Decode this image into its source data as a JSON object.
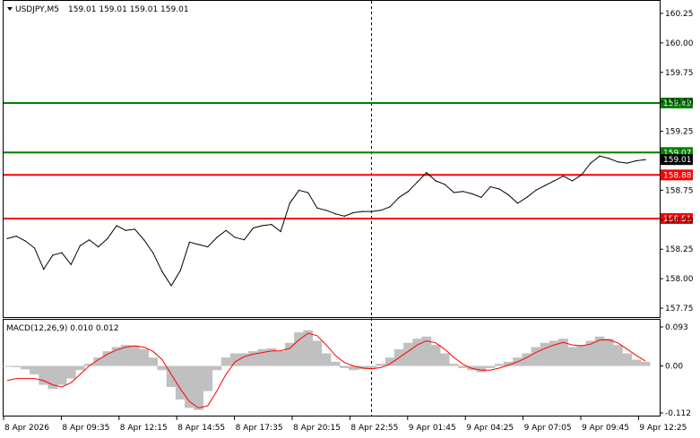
{
  "header": {
    "symbol": "USDJPY,M5",
    "ohlc": "159.01 159.01 159.01 159.01"
  },
  "macd_header": "MACD(12,26,9) 0.010 0.012",
  "colors": {
    "price_line": "#000000",
    "resistance": "#008000",
    "support": "#ff0000",
    "current_price_bg": "#000000",
    "histogram": "#c0c0c0",
    "signal": "#ff0000",
    "grid": "#000000"
  },
  "chart_data": [
    {
      "type": "line",
      "title": "",
      "x_labels": [
        "8 Apr 2026",
        "8 Apr 09:35",
        "8 Apr 12:15",
        "8 Apr 14:55",
        "8 Apr 17:35",
        "8 Apr 20:15",
        "8 Apr 22:55",
        "9 Apr 01:45",
        "9 Apr 04:25",
        "9 Apr 07:05",
        "9 Apr 09:45",
        "9 Apr 12:25"
      ],
      "y_ticks": [
        "160.25",
        "160.00",
        "159.75",
        "159.50",
        "159.25",
        "159.00",
        "158.75",
        "158.50",
        "158.25",
        "158.00",
        "157.75"
      ],
      "ylim": [
        157.72,
        160.28
      ],
      "series": [
        {
          "values": [
            158.34,
            158.36,
            158.32,
            158.26,
            158.08,
            158.2,
            158.22,
            158.12,
            158.28,
            158.33,
            158.27,
            158.34,
            158.45,
            158.41,
            158.42,
            158.33,
            158.22,
            158.06,
            157.94,
            158.07,
            158.31,
            158.29,
            158.27,
            158.35,
            158.41,
            158.35,
            158.33,
            158.43,
            158.45,
            158.46,
            158.4,
            158.64,
            158.75,
            158.73,
            158.6,
            158.58,
            158.55,
            158.53,
            158.56,
            158.57,
            158.57,
            158.58,
            158.61,
            158.69,
            158.74,
            158.82,
            158.9,
            158.83,
            158.8,
            158.73,
            158.74,
            158.72,
            158.69,
            158.78,
            158.76,
            158.71,
            158.64,
            158.69,
            158.75,
            158.79,
            158.83,
            158.87,
            158.83,
            158.88,
            158.98,
            159.04,
            159.02,
            158.99,
            158.98,
            159.0,
            159.01
          ]
        }
      ],
      "levels": [
        {
          "value": 159.49,
          "label": "159.49",
          "kind": "resistance"
        },
        {
          "value": 159.07,
          "label": "159.07",
          "kind": "resistance"
        },
        {
          "value": 158.88,
          "label": "158.88",
          "kind": "support"
        },
        {
          "value": 158.51,
          "label": "158.51",
          "kind": "support"
        }
      ],
      "current_price": {
        "value": 159.01,
        "label": "159.01"
      }
    },
    {
      "type": "bar",
      "title": "MACD(12,26,9) 0.010 0.012",
      "y_ticks": [
        "0.093",
        "0.00",
        "-0.112"
      ],
      "ylim": [
        -0.112,
        0.093
      ],
      "histogram": [
        -0.002,
        -0.003,
        -0.008,
        -0.02,
        -0.045,
        -0.055,
        -0.045,
        -0.03,
        -0.01,
        0.005,
        0.02,
        0.035,
        0.045,
        0.05,
        0.048,
        0.04,
        0.02,
        -0.01,
        -0.05,
        -0.08,
        -0.1,
        -0.105,
        -0.06,
        -0.01,
        0.02,
        0.03,
        0.03,
        0.035,
        0.04,
        0.042,
        0.035,
        0.055,
        0.08,
        0.085,
        0.06,
        0.03,
        0.01,
        -0.005,
        -0.01,
        -0.008,
        -0.005,
        0.005,
        0.02,
        0.04,
        0.055,
        0.065,
        0.07,
        0.05,
        0.03,
        0.005,
        -0.005,
        -0.01,
        -0.015,
        -0.005,
        0.005,
        0.01,
        0.02,
        0.03,
        0.045,
        0.055,
        0.06,
        0.065,
        0.045,
        0.05,
        0.06,
        0.07,
        0.065,
        0.05,
        0.03,
        0.015,
        0.01
      ],
      "signal": [
        -0.035,
        -0.03,
        -0.03,
        -0.03,
        -0.035,
        -0.045,
        -0.05,
        -0.04,
        -0.02,
        0.0,
        0.015,
        0.028,
        0.038,
        0.045,
        0.048,
        0.045,
        0.035,
        0.015,
        -0.02,
        -0.055,
        -0.085,
        -0.1,
        -0.095,
        -0.06,
        -0.02,
        0.01,
        0.022,
        0.028,
        0.032,
        0.036,
        0.036,
        0.042,
        0.062,
        0.078,
        0.072,
        0.05,
        0.025,
        0.008,
        0.0,
        -0.005,
        -0.007,
        -0.004,
        0.005,
        0.02,
        0.035,
        0.05,
        0.06,
        0.055,
        0.04,
        0.02,
        0.004,
        -0.006,
        -0.01,
        -0.01,
        -0.005,
        0.002,
        0.01,
        0.02,
        0.032,
        0.042,
        0.05,
        0.056,
        0.05,
        0.048,
        0.052,
        0.062,
        0.062,
        0.055,
        0.04,
        0.025,
        0.012
      ]
    }
  ]
}
